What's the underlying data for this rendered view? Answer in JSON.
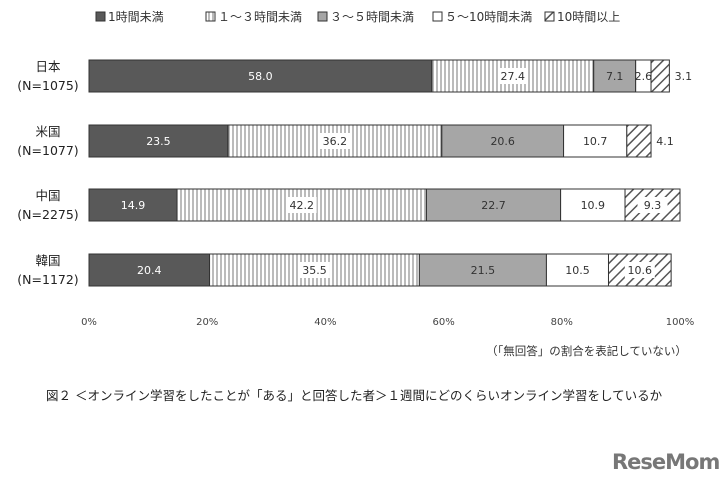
{
  "chart_data": {
    "type": "bar",
    "orientation": "horizontal",
    "stacked": true,
    "categories": [
      {
        "label": "日本",
        "n": "(N=1075)"
      },
      {
        "label": "米国",
        "n": "(N=1077)"
      },
      {
        "label": "中国",
        "n": "(N=2275)"
      },
      {
        "label": "韓国",
        "n": "(N=1172)"
      }
    ],
    "series": [
      {
        "name": "1時間未満",
        "fill": "#595959",
        "pattern": "solid",
        "values": [
          58.0,
          23.5,
          14.9,
          20.4
        ]
      },
      {
        "name": "１～３時間未満",
        "fill": "#ffffff",
        "pattern": "vertical-lines",
        "values": [
          27.4,
          36.2,
          42.2,
          35.5
        ]
      },
      {
        "name": "３～５時間未満",
        "fill": "#a6a6a6",
        "pattern": "solid",
        "values": [
          7.1,
          20.6,
          22.7,
          21.5
        ]
      },
      {
        "name": "５～10時間未満",
        "fill": "#ffffff",
        "pattern": "solid",
        "values": [
          2.6,
          10.7,
          10.9,
          10.5
        ]
      },
      {
        "name": "10時間以上",
        "fill": "#ffffff",
        "pattern": "diagonal-hatch",
        "values": [
          3.1,
          4.1,
          9.3,
          10.6
        ]
      }
    ],
    "xlim": [
      0,
      100
    ],
    "xticks": [
      "0%",
      "20%",
      "40%",
      "60%",
      "80%",
      "100%"
    ],
    "grid": false,
    "legend": "top"
  },
  "note": "（「無回答」の割合を表記していない）",
  "caption": "図２ ＜オンライン学習をしたことが「ある」と回答した者＞１週間にどのくらいオンライン学習をしているか",
  "logo": "ReseMom"
}
